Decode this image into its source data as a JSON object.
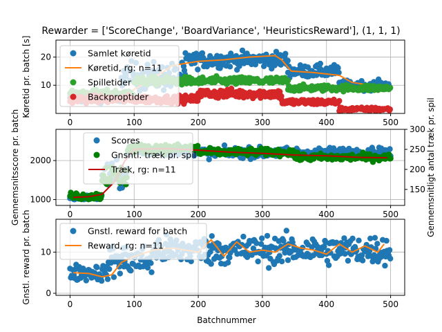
{
  "figure": {
    "title": "Rewarder = ['ScoreChange', 'BoardVariance', 'HeuristicsReward'], (1, 1, 1)",
    "xlabel": "Batchnummer"
  },
  "chart_data": [
    {
      "type": "scatter",
      "id": "runtime",
      "ylabel": "Køretid pr. batch [s]",
      "xlim": [
        -22,
        522
      ],
      "ylim": [
        0,
        26
      ],
      "xticks": [
        0,
        100,
        200,
        300,
        400,
        500
      ],
      "yticks": [
        10,
        20
      ],
      "grid": true,
      "legend_position": "top-left",
      "series": [
        {
          "name": "Samlet køretid",
          "kind": "scatter",
          "color": "#1f77b4",
          "segments": [
            [
              0,
              80,
              5.0,
              1.0
            ],
            [
              80,
              180,
              13.0,
              4.5
            ],
            [
              180,
              340,
              19.0,
              2.5
            ],
            [
              340,
              420,
              15.0,
              2.0
            ],
            [
              420,
              500,
              10.0,
              1.5
            ]
          ]
        },
        {
          "name": "Køretid, rg: n=11",
          "kind": "line",
          "color": "#ff7f0e",
          "x": [
            5,
            40,
            80,
            120,
            160,
            200,
            240,
            280,
            320,
            330,
            345,
            380,
            420,
            440,
            470,
            495
          ],
          "y": [
            4.5,
            5.5,
            6.0,
            11.0,
            17.0,
            18.5,
            19.0,
            20.0,
            20.5,
            19.0,
            15.0,
            14.5,
            13.5,
            11.0,
            10.0,
            10.0
          ]
        },
        {
          "name": "Spilletider",
          "kind": "scatter",
          "color": "#2ca02c",
          "segments": [
            [
              0,
              100,
              7.0,
              1.2
            ],
            [
              100,
              340,
              11.5,
              1.3
            ],
            [
              340,
              500,
              9.0,
              1.0
            ]
          ]
        },
        {
          "name": "Backproptider",
          "kind": "scatter",
          "color": "#d62728",
          "segments": [
            [
              0,
              200,
              5.0,
              1.2
            ],
            [
              200,
              330,
              7.0,
              1.5
            ],
            [
              330,
              420,
              4.0,
              1.0
            ],
            [
              420,
              500,
              1.5,
              0.6
            ]
          ]
        }
      ]
    },
    {
      "type": "scatter",
      "id": "score",
      "ylabel": "Gennemsnitsscore pr. batch",
      "ylabel_right": "Gennemsnitligt antal træk pr. spil",
      "xlim": [
        -22,
        522
      ],
      "ylim": [
        850,
        2800
      ],
      "ylim_right": [
        110,
        300
      ],
      "xticks": [
        0,
        100,
        200,
        300,
        400,
        500
      ],
      "yticks": [
        1000,
        2000
      ],
      "yticks_right": [
        150,
        200,
        250,
        300
      ],
      "grid": true,
      "legend_position": "top-left",
      "series": [
        {
          "name": "Scores",
          "kind": "scatter",
          "color": "#1f77b4",
          "segments": [
            [
              0,
              50,
              1050,
              60
            ],
            [
              50,
              90,
              1600,
              300
            ],
            [
              90,
              200,
              2250,
              120
            ],
            [
              200,
              500,
              2200,
              120
            ]
          ]
        },
        {
          "name": "Gnsntl. træk pr. spil",
          "kind": "scatter",
          "color": "#008000",
          "axis": "right",
          "segments": [
            [
              0,
              50,
              133,
              8
            ],
            [
              50,
              90,
              185,
              25
            ],
            [
              90,
              200,
              252,
              10
            ],
            [
              200,
              350,
              243,
              8
            ],
            [
              350,
              500,
              230,
              8
            ]
          ]
        },
        {
          "name": "Træk, rg: n=11",
          "kind": "line",
          "color": "#c00000",
          "axis": "right",
          "x": [
            5,
            30,
            50,
            70,
            85,
            100,
            150,
            200,
            250,
            300,
            350,
            400,
            450,
            495
          ],
          "y": [
            130,
            132,
            138,
            170,
            220,
            250,
            252,
            248,
            243,
            240,
            236,
            234,
            230,
            229
          ]
        }
      ]
    },
    {
      "type": "scatter",
      "id": "reward",
      "ylabel": "Gnstl. reward pr. batch",
      "xlim": [
        -22,
        522
      ],
      "ylim": [
        -0.5,
        18
      ],
      "xticks": [
        0,
        100,
        200,
        300,
        400,
        500
      ],
      "yticks": [
        0,
        10
      ],
      "grid": true,
      "legend_position": "top-left",
      "series": [
        {
          "name": "Gnstl. reward for batch",
          "kind": "scatter",
          "color": "#1f77b4",
          "segments": [
            [
              0,
              60,
              5.0,
              1.8
            ],
            [
              60,
              130,
              8.0,
              3.5
            ],
            [
              130,
              500,
              10.5,
              3.2
            ]
          ]
        },
        {
          "name": "Reward, rg: n=11",
          "kind": "line",
          "color": "#ff7f0e",
          "x": [
            5,
            30,
            50,
            65,
            80,
            100,
            130,
            160,
            200,
            220,
            240,
            260,
            280,
            300,
            320,
            340,
            360,
            380,
            400,
            420,
            440,
            460,
            480,
            490
          ],
          "y": [
            5.0,
            4.8,
            4.0,
            4.5,
            7.5,
            9.0,
            10.5,
            11.0,
            10.0,
            13.0,
            9.0,
            12.5,
            10.0,
            10.5,
            10.0,
            12.0,
            11.0,
            10.5,
            9.5,
            12.0,
            10.0,
            11.5,
            10.0,
            12.0
          ]
        }
      ]
    }
  ]
}
